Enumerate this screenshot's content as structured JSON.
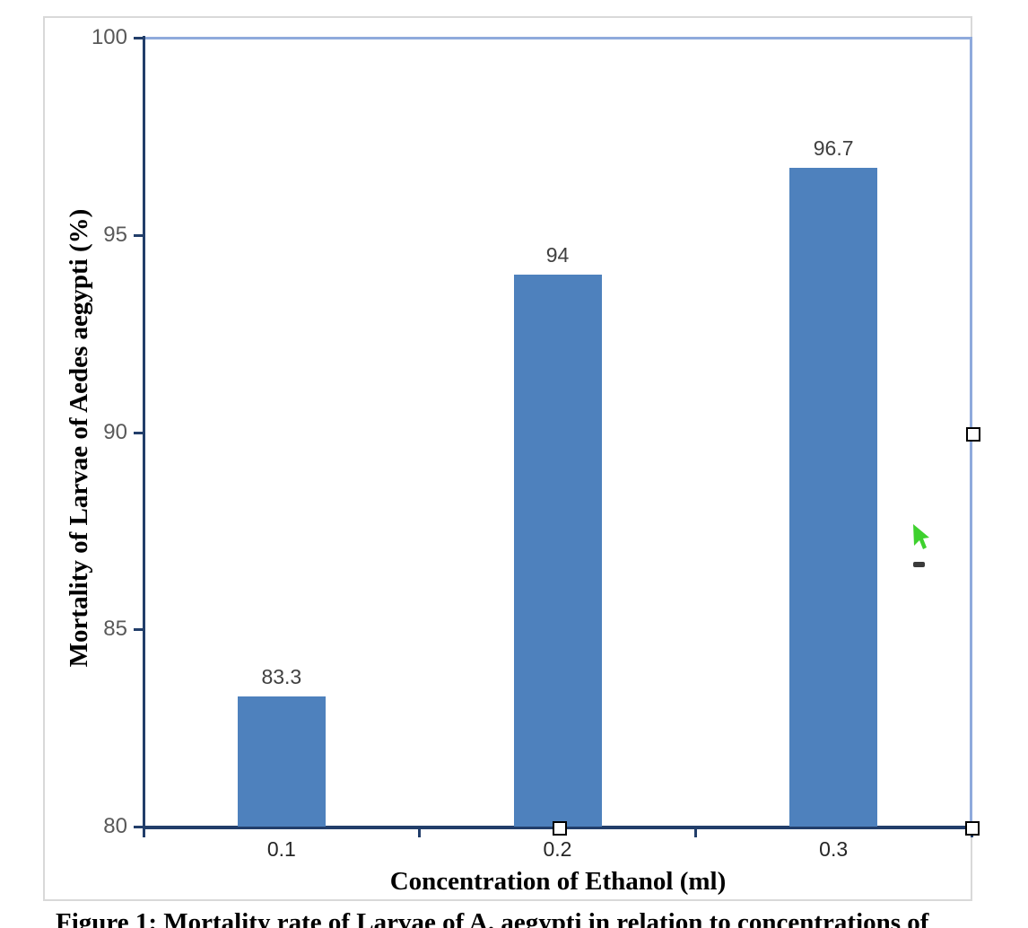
{
  "chart_data": {
    "type": "bar",
    "title": "",
    "categories": [
      "0.1",
      "0.2",
      "0.3"
    ],
    "values": [
      83.3,
      94,
      96.7
    ],
    "data_labels": [
      "83.3",
      "94",
      "96.7"
    ],
    "xlabel": "Concentration of Ethanol (ml)",
    "ylabel": "Mortality of Larvae of Aedes aegypti (%)",
    "ylim": [
      80,
      100
    ],
    "yticks": [
      80,
      85,
      90,
      95,
      100
    ],
    "legend": "none",
    "gridlines": "top border only",
    "bar_color": "#4E81BD",
    "axis_color": "#223E6A",
    "plot_border_color": "#8FAADC",
    "tick_label_color": "#595959",
    "data_label_color": "#404040",
    "category_label_color": "#262626"
  },
  "caption": {
    "text": "Figure 1: Mortality rate of Larvae of A. aegypti in relation to concentrations of"
  },
  "cursor": {
    "kind": "green-pointer",
    "color": "#3ED12E"
  }
}
